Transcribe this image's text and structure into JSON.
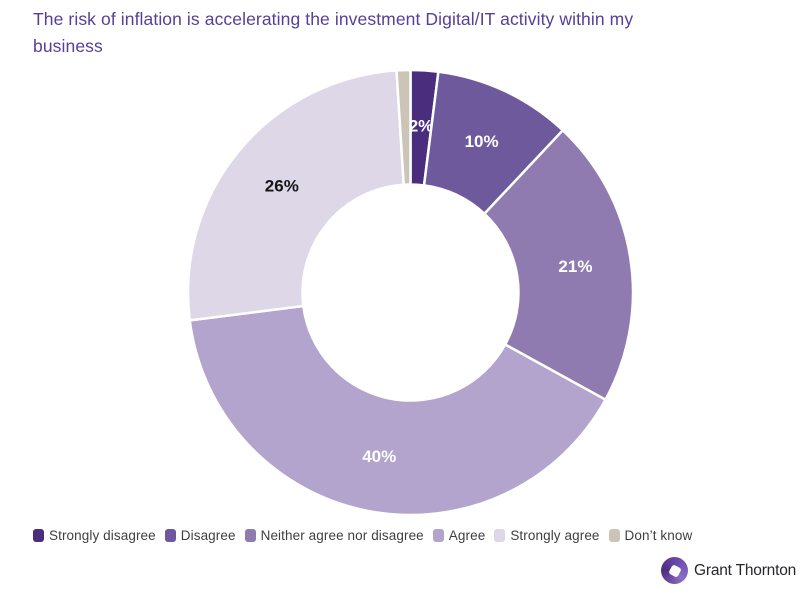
{
  "chart": {
    "title": "The risk of inflation is accelerating the investment Digital/IT activity within my\nbusiness",
    "title_color": "#563F99"
  },
  "chart_data": {
    "type": "pie",
    "subtype": "donut",
    "title": "The risk of inflation is accelerating the investment Digital/IT activity within my business",
    "categories": [
      "Strongly disagree",
      "Disagree",
      "Neither agree nor disagree",
      "Agree",
      "Strongly agree",
      "Don’t know"
    ],
    "values": [
      2,
      10,
      21,
      40,
      26,
      1
    ],
    "unit": "%",
    "series_colors": [
      "#4A2D7C",
      "#6E599D",
      "#8F7BB0",
      "#B2A4CC",
      "#DDD7E8",
      "#CBC5B8"
    ],
    "slice_labels": [
      "2%",
      "10%",
      "21%",
      "40%",
      "26%",
      ""
    ],
    "slice_label_colors": [
      "#FFFFFF",
      "#FFFFFF",
      "#FFFFFF",
      "#FFFFFF",
      "#161616",
      ""
    ],
    "start_angle_deg": 0,
    "direction": "clockwise",
    "donut_hole_ratio": 0.485,
    "segment_gap_color": "#FFFFFF",
    "legend_position": "bottom",
    "legend_text_color": "#3F3F3F"
  },
  "brand": {
    "name": "Grant Thornton",
    "icon_color": "#4F2D7F"
  }
}
